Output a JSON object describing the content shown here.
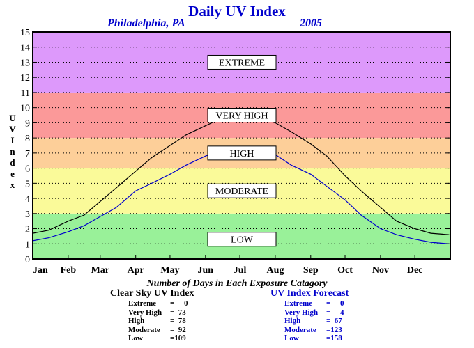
{
  "header": {
    "title": "Daily UV Index",
    "location": "Philadelphia, PA",
    "year": "2005"
  },
  "colors": {
    "low": "#99f199",
    "moderate": "#fafa99",
    "high": "#fdcf99",
    "very_high": "#fb9999",
    "extreme": "#dd99fb",
    "clear_sky_line": "#000000",
    "forecast_line": "#0000cc"
  },
  "chart_data": {
    "type": "line",
    "title": "Daily UV Index",
    "ylabel": "UV Index",
    "xlabel": "",
    "ylim": [
      0,
      15
    ],
    "yticks": [
      "0",
      "1",
      "2",
      "3",
      "4",
      "5",
      "6",
      "7",
      "8",
      "9",
      "10",
      "11",
      "12",
      "13",
      "14",
      "15"
    ],
    "months": [
      "Jan",
      "Feb",
      "Mar",
      "Apr",
      "May",
      "Jun",
      "Jul",
      "Aug",
      "Sep",
      "Oct",
      "Nov",
      "Dec"
    ],
    "grid": true,
    "bands": [
      {
        "label": "LOW",
        "from": 0,
        "to": 3
      },
      {
        "label": "MODERATE",
        "from": 3,
        "to": 6
      },
      {
        "label": "HIGH",
        "from": 6,
        "to": 8
      },
      {
        "label": "VERY HIGH",
        "from": 8,
        "to": 11
      },
      {
        "label": "EXTREME",
        "from": 11,
        "to": 15
      }
    ],
    "series": [
      {
        "name": "Clear Sky UV Index",
        "x_day": [
          1,
          15,
          32,
          46,
          60,
          74,
          91,
          105,
          121,
          135,
          152,
          166,
          182,
          196,
          213,
          227,
          244,
          258,
          274,
          288,
          305,
          319,
          335,
          349,
          365
        ],
        "values": [
          1.7,
          1.9,
          2.5,
          2.9,
          3.8,
          4.7,
          5.8,
          6.7,
          7.5,
          8.2,
          8.8,
          9.3,
          9.4,
          9.3,
          9.0,
          8.4,
          7.6,
          6.8,
          5.5,
          4.5,
          3.4,
          2.5,
          2.0,
          1.7,
          1.6
        ]
      },
      {
        "name": "UV Index Forecast",
        "x_day": [
          1,
          15,
          32,
          46,
          60,
          74,
          91,
          105,
          121,
          135,
          152,
          166,
          182,
          196,
          213,
          227,
          244,
          258,
          274,
          288,
          305,
          319,
          335,
          349,
          365
        ],
        "values": [
          1.2,
          1.4,
          1.8,
          2.2,
          2.8,
          3.4,
          4.5,
          5.0,
          5.6,
          6.2,
          6.8,
          7.2,
          7.4,
          7.2,
          6.9,
          6.2,
          5.6,
          4.8,
          3.9,
          2.9,
          2.0,
          1.6,
          1.3,
          1.1,
          1.0
        ]
      }
    ]
  },
  "summary": {
    "title": "Number of Days in Each Exposure Catagory",
    "clear_sky": {
      "heading": "Clear Sky UV Index",
      "rows": [
        {
          "label": "Extreme",
          "value": "=     0"
        },
        {
          "label": "Very High",
          "value": "=  73"
        },
        {
          "label": "High",
          "value": "=  78"
        },
        {
          "label": "Moderate",
          "value": "=  92"
        },
        {
          "label": "Low",
          "value": "=109"
        }
      ]
    },
    "forecast": {
      "heading": "UV Index Forecast",
      "rows": [
        {
          "label": "Extreme",
          "value": "=     0"
        },
        {
          "label": "Very High",
          "value": "=     4"
        },
        {
          "label": "High",
          "value": "=  67"
        },
        {
          "label": "Moderate",
          "value": "=123"
        },
        {
          "label": "Low",
          "value": "=158"
        }
      ]
    }
  }
}
